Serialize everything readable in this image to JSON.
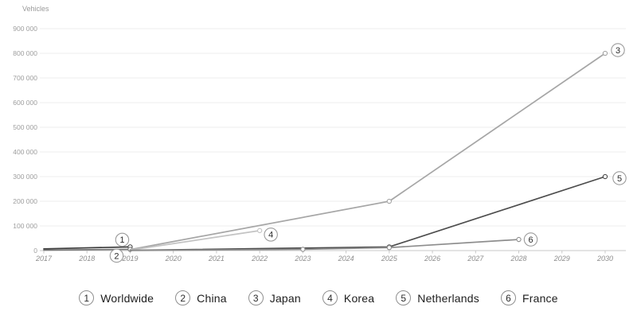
{
  "chart_data": {
    "type": "line",
    "title": "",
    "ylabel": "Vehicles",
    "xlabel": "",
    "xlim": [
      2017,
      2030
    ],
    "ylim": [
      0,
      900000
    ],
    "ytick_step": 100000,
    "x_ticks": [
      2017,
      2018,
      2019,
      2020,
      2021,
      2022,
      2023,
      2024,
      2025,
      2026,
      2027,
      2028,
      2029,
      2030
    ],
    "grid": "horizontal",
    "legend_position": "bottom",
    "series": [
      {
        "number": "1",
        "name": "Worldwide",
        "color": "#3d3d3d",
        "points": [
          [
            2017,
            7000
          ],
          [
            2019,
            15000
          ]
        ]
      },
      {
        "number": "2",
        "name": "China",
        "color": "#757575",
        "points": [
          [
            2017,
            2000
          ],
          [
            2019,
            5000
          ]
        ]
      },
      {
        "number": "3",
        "name": "Japan",
        "color": "#a6a6a6",
        "points": [
          [
            2019,
            4000
          ],
          [
            2025,
            200000
          ],
          [
            2030,
            800000
          ]
        ]
      },
      {
        "number": "4",
        "name": "Korea",
        "color": "#c3c3c3",
        "points": [
          [
            2019,
            2000
          ],
          [
            2022,
            81000
          ]
        ]
      },
      {
        "number": "5",
        "name": "Netherlands",
        "color": "#4c4c4c",
        "points": [
          [
            2019,
            1000
          ],
          [
            2025,
            15000
          ],
          [
            2030,
            300000
          ]
        ]
      },
      {
        "number": "6",
        "name": "France",
        "color": "#8d8d8d",
        "points": [
          [
            2019,
            500
          ],
          [
            2023,
            5000
          ],
          [
            2025,
            12000
          ],
          [
            2028,
            45000
          ]
        ]
      }
    ],
    "colors": {
      "background": "#ffffff",
      "gridline": "#ededed",
      "axis": "#c8c8c8",
      "tick_label": "#9e9e9e",
      "annotation_circle": "#9a9a9a",
      "annotation_number": "#2b2b2b"
    }
  }
}
